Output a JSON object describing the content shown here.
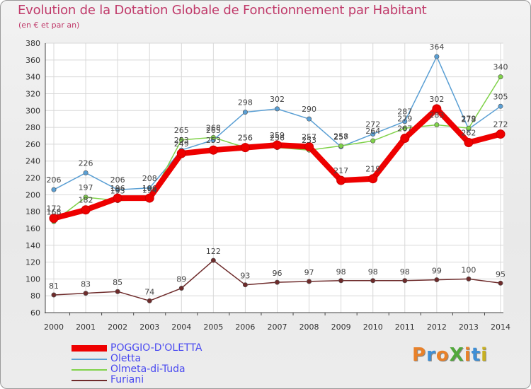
{
  "title": "Evolution de la Dotation Globale de Fonctionnement par Habitant",
  "subtitle": "(en € et par an)",
  "logo": {
    "text": "ProXiti",
    "colors": [
      "#e8812a",
      "#3e8fd6",
      "#e8812a",
      "#52a83c",
      "#e8812a",
      "#3e8fd6",
      "#c8b020"
    ]
  },
  "chart_data": {
    "type": "line",
    "title": "Evolution de la Dotation Globale de Fonctionnement par Habitant",
    "subtitle": "(en € et par an)",
    "xlabel": "",
    "ylabel": "",
    "ylim": [
      60,
      380
    ],
    "yticks": [
      60,
      80,
      100,
      120,
      140,
      160,
      180,
      200,
      220,
      240,
      260,
      280,
      300,
      320,
      340,
      360,
      380
    ],
    "grid": true,
    "legend_position": "bottom-left",
    "categories": [
      "2000",
      "2001",
      "2002",
      "2003",
      "2004",
      "2005",
      "2006",
      "2007",
      "2008",
      "2009",
      "2010",
      "2011",
      "2012",
      "2013",
      "2014"
    ],
    "series": [
      {
        "name": "POGGIO-D'OLETTA",
        "color": "#ee0000",
        "values": [
          172,
          182,
          196,
          196,
          249,
          253,
          256,
          259,
          257,
          217,
          219,
          267,
          302,
          262,
          272
        ]
      },
      {
        "name": "Oletta",
        "color": "#5a9fd4",
        "values": [
          206,
          226,
          206,
          208,
          253,
          265,
          298,
          302,
          290,
          257,
          272,
          287,
          364,
          278,
          305
        ]
      },
      {
        "name": "Olmeta-di-Tuda",
        "color": "#80d24a",
        "values": [
          168,
          197,
          193,
          194,
          265,
          268,
          256,
          256,
          253,
          258,
          264,
          279,
          283,
          279,
          340
        ]
      },
      {
        "name": "Furiani",
        "color": "#6e2b2b",
        "values": [
          81,
          83,
          85,
          74,
          89,
          122,
          93,
          96,
          97,
          98,
          98,
          98,
          99,
          100,
          95
        ]
      }
    ]
  }
}
